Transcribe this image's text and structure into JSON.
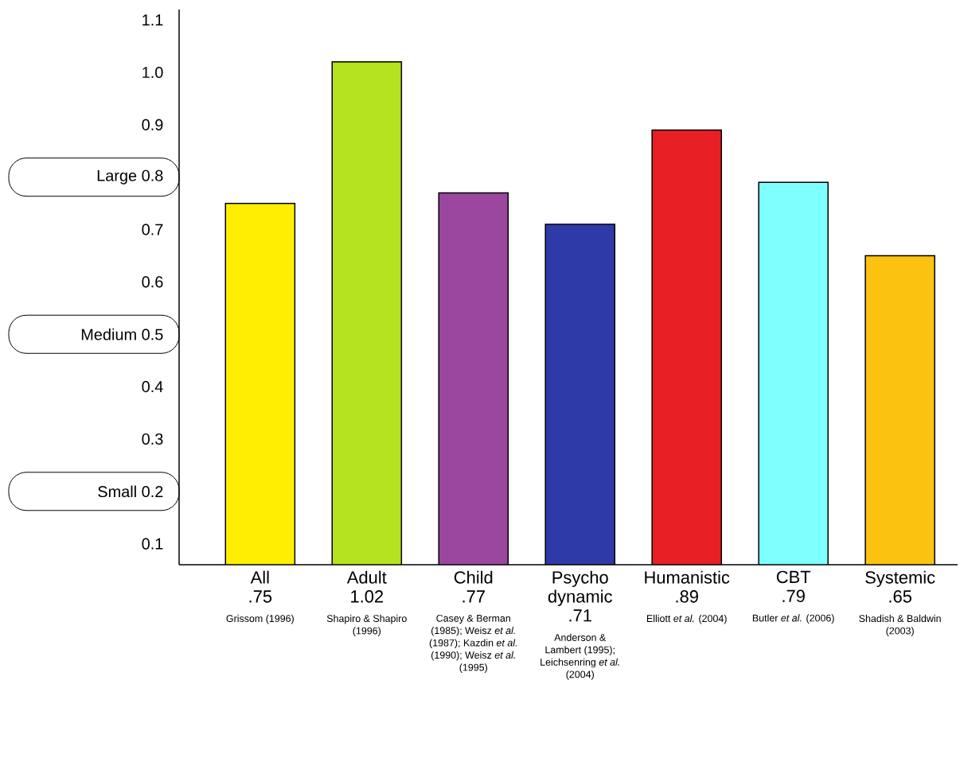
{
  "chart_data": {
    "type": "bar",
    "categories": [
      "All",
      "Adult",
      "Child",
      "Psycho dynamic",
      "Humanistic",
      "CBT",
      "Systemic"
    ],
    "values": [
      0.75,
      1.02,
      0.77,
      0.71,
      0.89,
      0.79,
      0.65
    ],
    "value_labels": [
      ".75",
      "1.02",
      ".77",
      ".71",
      ".89",
      ".79",
      ".65"
    ],
    "colors": [
      "#ffee00",
      "#b5e31f",
      "#9b47a0",
      "#2e3aa8",
      "#e81f25",
      "#80ffff",
      "#fcc210"
    ],
    "annotations": [
      "Grissom (1996)",
      "Shapiro & Shapiro (1996)",
      "Casey & Berman (1985); Weisz *et al.* (1987); Kazdin *et al.* (1990); Weisz *et al.* (1995)",
      "Anderson & Lambert (1995); Leichsenring *et al.* (2004)",
      "Elliott *et al.* (2004)",
      "Butler *et al.* (2006)",
      "Shadish & Baldwin (2003)"
    ],
    "ylim": [
      0.06,
      1.12
    ],
    "yticks": [
      0.1,
      {
        "value": 0.2,
        "label": "Small 0.2"
      },
      0.3,
      0.4,
      {
        "value": 0.5,
        "label": "Medium 0.5"
      },
      0.6,
      0.7,
      {
        "value": 0.8,
        "label": "Large 0.8"
      },
      0.9,
      {
        "value": 1.0,
        "label": "1.0"
      },
      1.1
    ]
  }
}
